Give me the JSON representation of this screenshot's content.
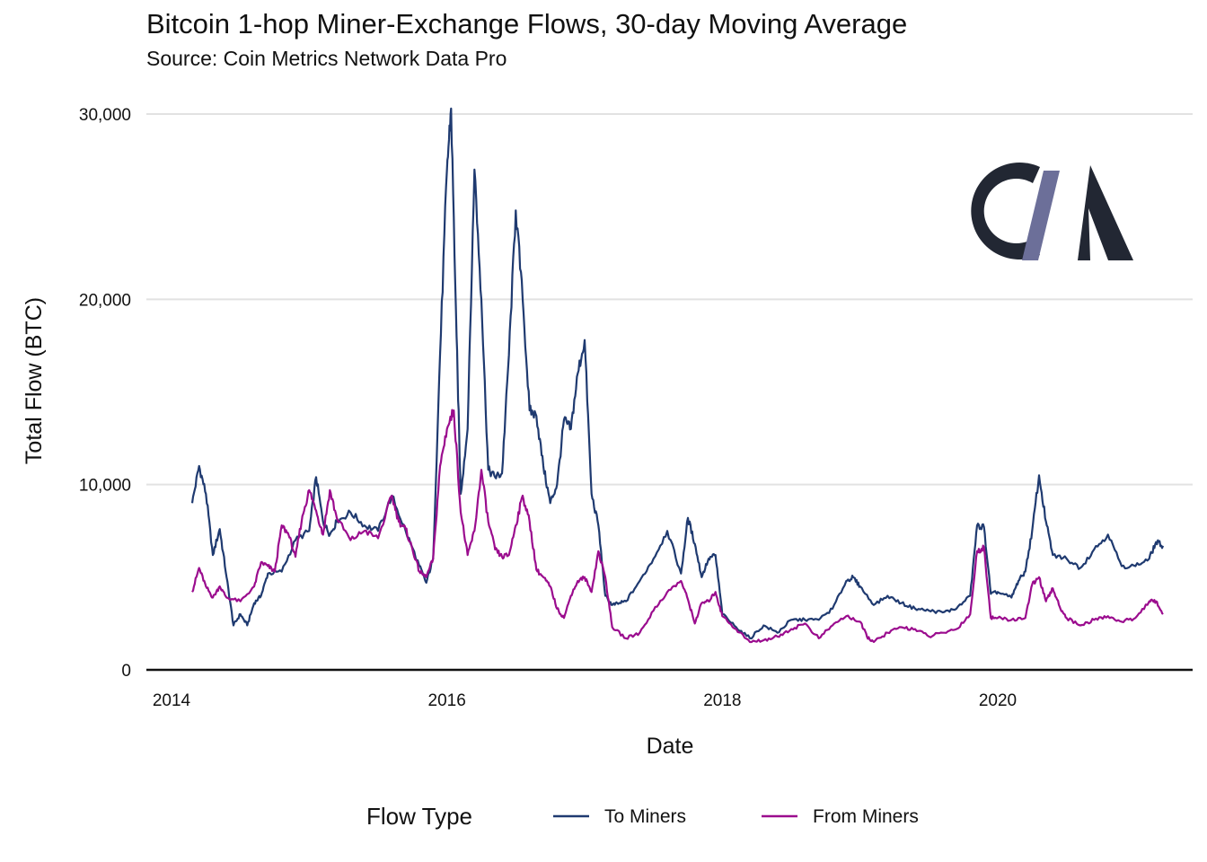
{
  "chart_data": {
    "type": "line",
    "title": "Bitcoin 1-hop Miner-Exchange Flows, 30-day Moving Average",
    "subtitle": "Source: Coin Metrics Network Data Pro",
    "xlabel": "Date",
    "ylabel": "Total Flow (BTC)",
    "xlim": [
      2013.9,
      2021.6
    ],
    "ylim": [
      0,
      30000
    ],
    "x_ticks": [
      2014,
      2016,
      2018,
      2020
    ],
    "x_tick_labels": [
      "2014",
      "2016",
      "2018",
      "2020"
    ],
    "y_ticks": [
      0,
      10000,
      20000,
      30000
    ],
    "y_tick_labels": [
      "0",
      "10,000",
      "20,000",
      "30,000"
    ],
    "grid": true,
    "legend": {
      "title": "Flow Type",
      "position": "bottom"
    },
    "logo_text": "CM",
    "series": [
      {
        "name": "To Miners",
        "color": "#1f3a70",
        "x": [
          2014.15,
          2014.2,
          2014.25,
          2014.3,
          2014.35,
          2014.4,
          2014.45,
          2014.5,
          2014.55,
          2014.6,
          2014.65,
          2014.7,
          2014.8,
          2014.9,
          2015.0,
          2015.05,
          2015.1,
          2015.15,
          2015.2,
          2015.3,
          2015.4,
          2015.5,
          2015.6,
          2015.7,
          2015.8,
          2015.85,
          2015.9,
          2015.95,
          2016.0,
          2016.03,
          2016.07,
          2016.1,
          2016.15,
          2016.2,
          2016.25,
          2016.3,
          2016.35,
          2016.4,
          2016.45,
          2016.5,
          2016.55,
          2016.6,
          2016.65,
          2016.7,
          2016.75,
          2016.8,
          2016.85,
          2016.9,
          2016.95,
          2017.0,
          2017.05,
          2017.1,
          2017.15,
          2017.2,
          2017.25,
          2017.3,
          2017.4,
          2017.5,
          2017.6,
          2017.7,
          2017.75,
          2017.8,
          2017.85,
          2017.9,
          2017.95,
          2018.0,
          2018.1,
          2018.2,
          2018.3,
          2018.4,
          2018.5,
          2018.6,
          2018.7,
          2018.8,
          2018.9,
          2018.95,
          2019.0,
          2019.1,
          2019.2,
          2019.3,
          2019.4,
          2019.5,
          2019.6,
          2019.7,
          2019.8,
          2019.85,
          2019.9,
          2019.95,
          2020.0,
          2020.1,
          2020.15,
          2020.2,
          2020.25,
          2020.3,
          2020.35,
          2020.4,
          2020.5,
          2020.6,
          2020.7,
          2020.8,
          2020.9,
          2021.0,
          2021.1,
          2021.15,
          2021.2
        ],
        "values": [
          9000,
          11000,
          9500,
          6200,
          7600,
          5000,
          2400,
          3000,
          2400,
          3600,
          4000,
          5200,
          5300,
          7000,
          7500,
          10400,
          8000,
          7300,
          8000,
          8500,
          7800,
          7500,
          9400,
          7500,
          5600,
          4700,
          6000,
          17000,
          27000,
          30300,
          18000,
          9500,
          13000,
          27000,
          20000,
          10800,
          10400,
          10600,
          17000,
          24800,
          20000,
          14000,
          13700,
          11000,
          9000,
          10000,
          13500,
          13000,
          16000,
          17800,
          9500,
          7800,
          4000,
          3500,
          3600,
          3700,
          4800,
          6000,
          7500,
          5200,
          8200,
          6800,
          5000,
          6000,
          6200,
          3000,
          2300,
          1700,
          2400,
          2000,
          2700,
          2700,
          2700,
          3300,
          4800,
          5000,
          4500,
          3500,
          4000,
          3600,
          3300,
          3200,
          3100,
          3300,
          4000,
          7800,
          7700,
          4100,
          4200,
          3900,
          4800,
          5300,
          7500,
          10500,
          8000,
          6200,
          6000,
          5500,
          6500,
          7300,
          5600,
          5600,
          6000,
          6900,
          6700
        ]
      },
      {
        "name": "From Miners",
        "color": "#9b0c8e",
        "x": [
          2014.15,
          2014.2,
          2014.25,
          2014.3,
          2014.35,
          2014.4,
          2014.5,
          2014.6,
          2014.65,
          2014.7,
          2014.75,
          2014.8,
          2014.85,
          2014.9,
          2014.95,
          2015.0,
          2015.05,
          2015.1,
          2015.15,
          2015.2,
          2015.3,
          2015.4,
          2015.5,
          2015.6,
          2015.65,
          2015.7,
          2015.75,
          2015.8,
          2015.85,
          2015.9,
          2015.95,
          2016.0,
          2016.05,
          2016.1,
          2016.15,
          2016.2,
          2016.25,
          2016.3,
          2016.35,
          2016.4,
          2016.45,
          2016.5,
          2016.55,
          2016.6,
          2016.65,
          2016.7,
          2016.75,
          2016.8,
          2016.85,
          2016.9,
          2016.95,
          2017.0,
          2017.05,
          2017.1,
          2017.15,
          2017.2,
          2017.3,
          2017.4,
          2017.5,
          2017.6,
          2017.7,
          2017.75,
          2017.8,
          2017.85,
          2017.9,
          2017.95,
          2018.0,
          2018.1,
          2018.2,
          2018.3,
          2018.4,
          2018.5,
          2018.6,
          2018.7,
          2018.8,
          2018.9,
          2019.0,
          2019.05,
          2019.1,
          2019.2,
          2019.3,
          2019.4,
          2019.5,
          2019.6,
          2019.7,
          2019.8,
          2019.85,
          2019.9,
          2019.95,
          2020.0,
          2020.1,
          2020.2,
          2020.25,
          2020.3,
          2020.35,
          2020.4,
          2020.45,
          2020.5,
          2020.6,
          2020.7,
          2020.8,
          2020.9,
          2021.0,
          2021.1,
          2021.15,
          2021.2
        ],
        "values": [
          4200,
          5500,
          4500,
          3900,
          4500,
          3900,
          3700,
          4500,
          5800,
          5600,
          5300,
          7800,
          7300,
          6100,
          8300,
          9700,
          8600,
          7300,
          9700,
          8200,
          7000,
          7500,
          7100,
          9400,
          8000,
          7600,
          6500,
          5300,
          5000,
          6000,
          11000,
          13000,
          14000,
          8500,
          6200,
          7500,
          10800,
          8000,
          6500,
          6100,
          6200,
          7800,
          9400,
          8000,
          5400,
          5000,
          4500,
          3300,
          2800,
          4000,
          4800,
          5000,
          4200,
          6400,
          5000,
          2300,
          1700,
          2000,
          3200,
          4200,
          4800,
          3800,
          2500,
          3600,
          3700,
          4200,
          2900,
          2200,
          1500,
          1600,
          1800,
          2200,
          2500,
          1700,
          2400,
          2900,
          2600,
          1800,
          1500,
          2000,
          2300,
          2200,
          1800,
          2000,
          2200,
          3000,
          6400,
          6600,
          2800,
          2800,
          2700,
          2800,
          4600,
          5000,
          3700,
          4400,
          3400,
          2800,
          2400,
          2700,
          2900,
          2600,
          2800,
          3700,
          3700,
          3000
        ]
      }
    ]
  }
}
